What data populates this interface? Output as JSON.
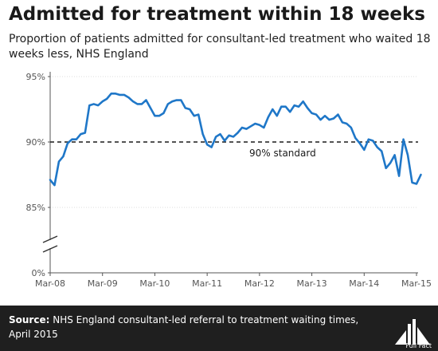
{
  "header": {
    "title": "Admitted for treatment within 18 weeks",
    "subtitle": "Proportion of patients admitted for consultant-led treatment who waited 18 weeks less, NHS England"
  },
  "footer": {
    "source_label": "Source:",
    "source_text": "NHS England consultant-led referral to treatment waiting times, April 2015",
    "logo_text": "Full Fact"
  },
  "colors": {
    "line": "#1f77c8",
    "reference": "#1a1a1a",
    "footer_bg": "#1f1f1f"
  },
  "chart_data": {
    "type": "line",
    "title": "Admitted for treatment within 18 weeks",
    "y_tick_labels": [
      "95%",
      "90%",
      "85%",
      "0%"
    ],
    "y_ticks": [
      95,
      90,
      85
    ],
    "ylim": [
      84.2,
      95
    ],
    "y_axis_break": true,
    "x_tick_labels": [
      "Mar-08",
      "Mar-09",
      "Mar-10",
      "Mar-11",
      "Mar-12",
      "Mar-13",
      "Mar-14",
      "Mar-15"
    ],
    "grid": "horizontal",
    "reference_line": {
      "value": 90,
      "label": "90% standard",
      "style": "dashed"
    },
    "series": [
      {
        "start": "Mar-08",
        "frequency": "monthly",
        "values": [
          87.1,
          86.7,
          88.5,
          88.9,
          89.9,
          90.2,
          90.2,
          90.6,
          90.7,
          92.8,
          92.9,
          92.8,
          93.1,
          93.3,
          93.7,
          93.7,
          93.6,
          93.6,
          93.4,
          93.1,
          92.9,
          92.9,
          93.2,
          92.6,
          92.0,
          92.0,
          92.2,
          92.9,
          93.1,
          93.2,
          93.2,
          92.6,
          92.5,
          92.0,
          92.1,
          90.6,
          89.8,
          89.6,
          90.4,
          90.6,
          90.1,
          90.5,
          90.4,
          90.7,
          91.1,
          91.0,
          91.2,
          91.4,
          91.3,
          91.1,
          91.9,
          92.5,
          92.0,
          92.7,
          92.7,
          92.3,
          92.8,
          92.7,
          93.1,
          92.6,
          92.2,
          92.1,
          91.7,
          92.0,
          91.7,
          91.8,
          92.1,
          91.5,
          91.4,
          91.1,
          90.3,
          89.9,
          89.4,
          90.2,
          90.1,
          89.6,
          89.3,
          88.0,
          88.4,
          89.0,
          87.4,
          90.2,
          89.0,
          86.9,
          86.8,
          87.5
        ]
      }
    ]
  }
}
